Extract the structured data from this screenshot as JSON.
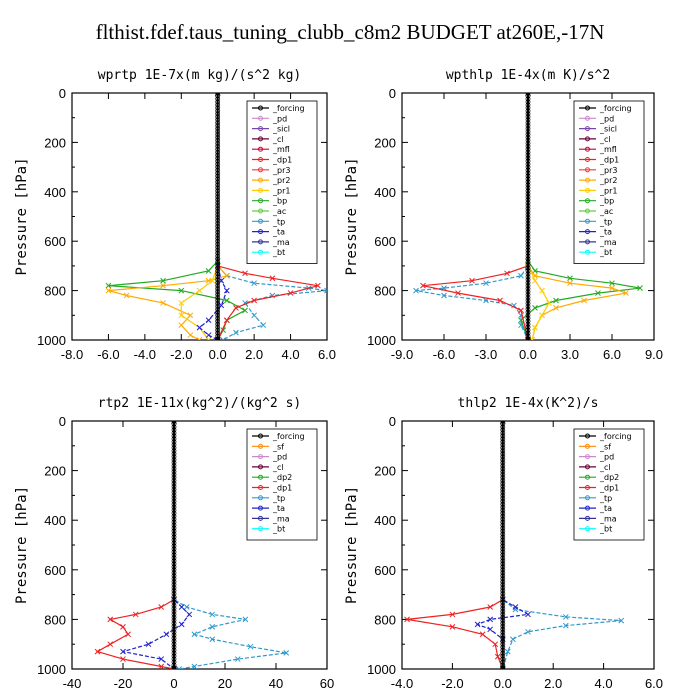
{
  "figure_title": "flthist.fdef.taus_tuning_clubb_c8m2  BUDGET at260E,-17N",
  "colors": {
    "_forcing": "#000000",
    "_pd": "#cc88cc",
    "_sicl": "#7744aa",
    "_cl": "#660033",
    "_mfl": "#cc0033",
    "_dp1": "#ee2222",
    "_pr3": "#ff3333",
    "_pr2": "#ffaa00",
    "_pr1": "#ffcc00",
    "_bp": "#22aa22",
    "_ac": "#66cc44",
    "_tp": "#3399cc",
    "_ta": "#2222cc",
    "_ma": "#333399",
    "_bt": "#00ffff",
    "_sf": "#ff8800",
    "_dp2": "#22aa22"
  },
  "chart_data": [
    {
      "type": "line",
      "title": "wprtp  1E-7x(m kg)/(s^2 kg)",
      "ylabel": "Pressure [hPa]",
      "xlim": [
        -8,
        6
      ],
      "ylim": [
        1000,
        0
      ],
      "xticks": [
        "-8.0",
        "-6.0",
        "-4.0",
        "-2.0",
        "0.0",
        "2.0",
        "4.0",
        "6.0"
      ],
      "yticks": [
        "0",
        "200",
        "400",
        "600",
        "800",
        "1000"
      ],
      "legend": [
        "_forcing",
        "_pd",
        "_sicl",
        "_cl",
        "_mfl",
        "_dp1",
        "_pr3",
        "_pr2",
        "_pr1",
        "_bp",
        "_ac",
        "_tp",
        "_ta",
        "_ma",
        "_bt"
      ],
      "legend_placement": "top-right",
      "series": [
        {
          "name": "_bp",
          "points": [
            [
              0,
              0
            ],
            [
              0,
              680
            ],
            [
              -0.5,
              720
            ],
            [
              -3,
              760
            ],
            [
              -6,
              780
            ],
            [
              -2,
              800
            ],
            [
              0.5,
              840
            ],
            [
              1.5,
              880
            ],
            [
              0.5,
              920
            ],
            [
              0.3,
              960
            ],
            [
              0,
              1000
            ]
          ]
        },
        {
          "name": "_tp",
          "points": [
            [
              0,
              0
            ],
            [
              0,
              700
            ],
            [
              0.5,
              740
            ],
            [
              2,
              770
            ],
            [
              5,
              790
            ],
            [
              6,
              800
            ],
            [
              3,
              820
            ],
            [
              1.5,
              850
            ],
            [
              2,
              900
            ],
            [
              2.5,
              940
            ],
            [
              1,
              970
            ],
            [
              0.3,
              1000
            ]
          ]
        },
        {
          "name": "_pr2",
          "points": [
            [
              0,
              0
            ],
            [
              0,
              700
            ],
            [
              0.5,
              740
            ],
            [
              -0.5,
              760
            ],
            [
              -3,
              780
            ],
            [
              -6,
              800
            ],
            [
              -5,
              820
            ],
            [
              -3,
              850
            ],
            [
              -1.5,
              900
            ],
            [
              -2,
              940
            ],
            [
              -1.5,
              980
            ],
            [
              -1,
              1000
            ]
          ]
        },
        {
          "name": "_dp1",
          "points": [
            [
              0,
              0
            ],
            [
              0,
              700
            ],
            [
              1.5,
              730
            ],
            [
              3,
              750
            ],
            [
              5.5,
              780
            ],
            [
              4,
              810
            ],
            [
              2,
              840
            ],
            [
              1,
              870
            ],
            [
              0.5,
              920
            ],
            [
              0,
              1000
            ]
          ]
        },
        {
          "name": "_pr1",
          "points": [
            [
              0,
              0
            ],
            [
              0,
              700
            ],
            [
              -0.3,
              760
            ],
            [
              -1,
              800
            ],
            [
              -2,
              850
            ],
            [
              -2,
              900
            ],
            [
              -1,
              950
            ],
            [
              -0.5,
              1000
            ]
          ]
        },
        {
          "name": "_ta",
          "points": [
            [
              0,
              0
            ],
            [
              0,
              700
            ],
            [
              0.2,
              760
            ],
            [
              0.5,
              800
            ],
            [
              0.2,
              860
            ],
            [
              -0.5,
              920
            ],
            [
              -1,
              950
            ],
            [
              -0.5,
              980
            ],
            [
              0,
              1000
            ]
          ]
        },
        {
          "name": "_forcing",
          "points": [
            [
              0,
              0
            ],
            [
              0,
              1000
            ]
          ]
        }
      ]
    },
    {
      "type": "line",
      "title": "wpthlp  1E-4x(m K)/s^2",
      "ylabel": "Pressure [hPa]",
      "xlim": [
        -9,
        9
      ],
      "ylim": [
        1000,
        0
      ],
      "xticks": [
        "-9.0",
        "-6.0",
        "-3.0",
        "0.0",
        "3.0",
        "6.0",
        "9.0"
      ],
      "yticks": [
        "0",
        "200",
        "400",
        "600",
        "800",
        "1000"
      ],
      "legend": [
        "_forcing",
        "_pd",
        "_sicl",
        "_cl",
        "_mfl",
        "_dp1",
        "_pr3",
        "_pr2",
        "_pr1",
        "_bp",
        "_ac",
        "_tp",
        "_ta",
        "_ma",
        "_bt"
      ],
      "legend_placement": "top-right",
      "series": [
        {
          "name": "_bp",
          "points": [
            [
              0,
              0
            ],
            [
              0,
              680
            ],
            [
              0.5,
              720
            ],
            [
              3,
              750
            ],
            [
              6,
              770
            ],
            [
              8,
              790
            ],
            [
              5,
              810
            ],
            [
              2,
              840
            ],
            [
              0.5,
              870
            ],
            [
              -0.5,
              920
            ],
            [
              0,
              1000
            ]
          ]
        },
        {
          "name": "_tp",
          "points": [
            [
              0,
              0
            ],
            [
              0,
              700
            ],
            [
              -0.5,
              740
            ],
            [
              -3,
              770
            ],
            [
              -6,
              790
            ],
            [
              -8,
              800
            ],
            [
              -6,
              820
            ],
            [
              -3,
              840
            ],
            [
              -1,
              860
            ],
            [
              -0.5,
              900
            ],
            [
              -0.5,
              940
            ],
            [
              0,
              1000
            ]
          ]
        },
        {
          "name": "_pr2",
          "points": [
            [
              0,
              0
            ],
            [
              0,
              700
            ],
            [
              0.5,
              740
            ],
            [
              3,
              770
            ],
            [
              6,
              790
            ],
            [
              7,
              810
            ],
            [
              4,
              840
            ],
            [
              2,
              870
            ],
            [
              1,
              900
            ],
            [
              0.5,
              950
            ],
            [
              0.3,
              1000
            ]
          ]
        },
        {
          "name": "_dp1",
          "points": [
            [
              0,
              0
            ],
            [
              0,
              700
            ],
            [
              -1.5,
              730
            ],
            [
              -4,
              760
            ],
            [
              -7.5,
              780
            ],
            [
              -5,
              810
            ],
            [
              -2,
              840
            ],
            [
              -0.5,
              880
            ],
            [
              0,
              1000
            ]
          ]
        },
        {
          "name": "_pr1",
          "points": [
            [
              0,
              0
            ],
            [
              0,
              700
            ],
            [
              0.5,
              760
            ],
            [
              1,
              800
            ],
            [
              1.5,
              850
            ],
            [
              1,
              900
            ],
            [
              0.5,
              950
            ],
            [
              0.3,
              1000
            ]
          ]
        },
        {
          "name": "_forcing",
          "points": [
            [
              0,
              0
            ],
            [
              0,
              1000
            ]
          ]
        }
      ]
    },
    {
      "type": "line",
      "title": "rtp2  1E-11x(kg^2)/(kg^2 s)",
      "ylabel": "Pressure [hPa]",
      "xlim": [
        -40,
        60
      ],
      "ylim": [
        1000,
        0
      ],
      "xticks": [
        "-40",
        "-20",
        "0",
        "20",
        "40",
        "60"
      ],
      "yticks": [
        "0",
        "200",
        "400",
        "600",
        "800",
        "1000"
      ],
      "legend": [
        "_forcing",
        "_sf",
        "_pd",
        "_cl",
        "_dp2",
        "_dp1",
        "_tp",
        "_ta",
        "_ma",
        "_bt"
      ],
      "legend_placement": "top-right",
      "series": [
        {
          "name": "_dp1",
          "points": [
            [
              0,
              0
            ],
            [
              0,
              720
            ],
            [
              -5,
              750
            ],
            [
              -15,
              780
            ],
            [
              -25,
              800
            ],
            [
              -20,
              830
            ],
            [
              -18,
              860
            ],
            [
              -25,
              900
            ],
            [
              -30,
              930
            ],
            [
              -20,
              960
            ],
            [
              -5,
              990
            ],
            [
              0,
              1000
            ]
          ]
        },
        {
          "name": "_tp",
          "points": [
            [
              0,
              0
            ],
            [
              0,
              720
            ],
            [
              5,
              750
            ],
            [
              15,
              780
            ],
            [
              28,
              800
            ],
            [
              15,
              830
            ],
            [
              8,
              860
            ],
            [
              15,
              880
            ],
            [
              30,
              910
            ],
            [
              44,
              935
            ],
            [
              25,
              960
            ],
            [
              8,
              990
            ],
            [
              2,
              1000
            ]
          ]
        },
        {
          "name": "_ta",
          "points": [
            [
              0,
              0
            ],
            [
              0,
              720
            ],
            [
              3,
              750
            ],
            [
              6,
              780
            ],
            [
              3,
              820
            ],
            [
              -3,
              860
            ],
            [
              -10,
              900
            ],
            [
              -20,
              930
            ],
            [
              -5,
              960
            ],
            [
              0,
              1000
            ]
          ]
        },
        {
          "name": "_forcing",
          "points": [
            [
              0,
              0
            ],
            [
              0,
              1000
            ]
          ]
        }
      ]
    },
    {
      "type": "line",
      "title": "thlp2  1E-4x(K^2)/s",
      "ylabel": "Pressure [hPa]",
      "xlim": [
        -4,
        6
      ],
      "ylim": [
        1000,
        0
      ],
      "xticks": [
        "-4.0",
        "-2.0",
        "0.0",
        "2.0",
        "4.0",
        "6.0"
      ],
      "yticks": [
        "0",
        "200",
        "400",
        "600",
        "800",
        "1000"
      ],
      "legend": [
        "_forcing",
        "_sf",
        "_pd",
        "_cl",
        "_dp2",
        "_dp1",
        "_tp",
        "_ta",
        "_ma",
        "_bt"
      ],
      "legend_placement": "top-right",
      "series": [
        {
          "name": "_dp1",
          "points": [
            [
              0,
              0
            ],
            [
              0,
              720
            ],
            [
              -0.5,
              750
            ],
            [
              -2,
              780
            ],
            [
              -3.8,
              800
            ],
            [
              -2,
              830
            ],
            [
              -0.8,
              860
            ],
            [
              -0.3,
              900
            ],
            [
              -0.2,
              950
            ],
            [
              0,
              1000
            ]
          ]
        },
        {
          "name": "_tp",
          "points": [
            [
              0,
              0
            ],
            [
              0,
              720
            ],
            [
              0.5,
              760
            ],
            [
              2.5,
              790
            ],
            [
              4.7,
              805
            ],
            [
              2.5,
              825
            ],
            [
              1,
              850
            ],
            [
              0.4,
              880
            ],
            [
              0.2,
              930
            ],
            [
              0,
              1000
            ]
          ]
        },
        {
          "name": "_ta",
          "points": [
            [
              0,
              0
            ],
            [
              0,
              720
            ],
            [
              0.5,
              750
            ],
            [
              1,
              780
            ],
            [
              -0.5,
              800
            ],
            [
              -1,
              820
            ],
            [
              -0.5,
              840
            ],
            [
              0,
              880
            ],
            [
              0,
              1000
            ]
          ]
        },
        {
          "name": "_forcing",
          "points": [
            [
              0,
              0
            ],
            [
              0,
              1000
            ]
          ]
        }
      ]
    }
  ]
}
